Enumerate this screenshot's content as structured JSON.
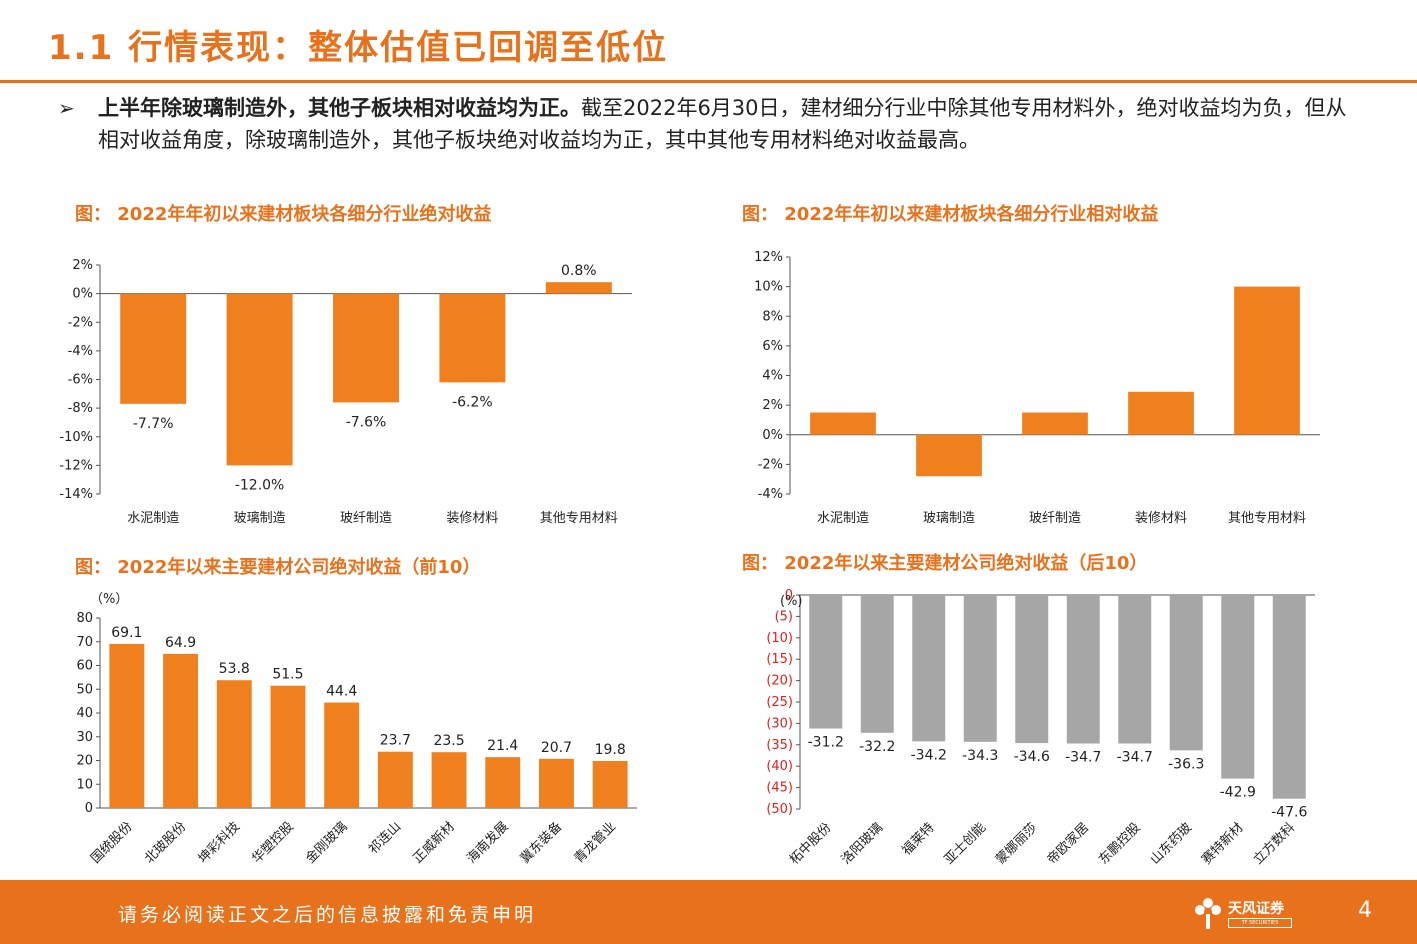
{
  "header": {
    "title": "1.1 行情表现：整体估值已回调至低位"
  },
  "bullet": {
    "marker": "➢",
    "bold": "上半年除玻璃制造外，其他子板块相对收益均为正。",
    "text": "截至2022年6月30日，建材细分行业中除其他专用材料外，绝对收益均为负，但从相对收益角度，除玻璃制造外，其他子板块绝对收益均为正，其中其他专用材料绝对收益最高。"
  },
  "figures": {
    "fig1_title": "图：  2022年年初以来建材板块各细分行业绝对收益",
    "fig2_title": "图：  2022年年初以来建材板块各细分行业相对收益",
    "fig3_title": "图：  2022年以来主要建材公司绝对收益（前10）",
    "fig4_title": "图：  2022年以来主要建材公司绝对收益（后10）"
  },
  "chart_data": [
    {
      "id": "abs",
      "type": "bar",
      "color": "#f0801e",
      "categories": [
        "水泥制造",
        "玻璃制造",
        "玻纤制造",
        "装修材料",
        "其他专用材料"
      ],
      "values": [
        -7.7,
        -12.0,
        -7.6,
        -6.2,
        0.8
      ],
      "labels": [
        "-7.7%",
        "-12.0%",
        "-7.6%",
        "-6.2%",
        "0.8%"
      ],
      "ylim": [
        -14,
        2
      ],
      "ticks": [
        2,
        0,
        -2,
        -4,
        -6,
        -8,
        -10,
        -12,
        -14
      ],
      "tick_labels": [
        "2%",
        "0%",
        "-2%",
        "-4%",
        "-6%",
        "-8%",
        "-10%",
        "-12%",
        "-14%"
      ]
    },
    {
      "id": "rel",
      "type": "bar",
      "color": "#f0801e",
      "categories": [
        "水泥制造",
        "玻璃制造",
        "玻纤制造",
        "装修材料",
        "其他专用材料"
      ],
      "values": [
        1.5,
        -2.8,
        1.5,
        2.9,
        10.0
      ],
      "ylim": [
        -4,
        12
      ],
      "ticks": [
        12,
        10,
        8,
        6,
        4,
        2,
        0,
        -2,
        -4
      ],
      "tick_labels": [
        "12%",
        "10%",
        "8%",
        "6%",
        "4%",
        "2%",
        "0%",
        "-2%",
        "-4%"
      ]
    },
    {
      "id": "top10",
      "type": "bar",
      "color": "#f0801e",
      "unit_label": "（%）",
      "categories": [
        "国统股份",
        "北玻股份",
        "坤彩科技",
        "华塑控股",
        "金刚玻璃",
        "祁连山",
        "正威新材",
        "海南发展",
        "冀东装备",
        "青龙管业"
      ],
      "values": [
        69.1,
        64.9,
        53.8,
        51.5,
        44.4,
        23.7,
        23.5,
        21.4,
        20.7,
        19.8
      ],
      "labels": [
        "69.1",
        "64.9",
        "53.8",
        "51.5",
        "44.4",
        "23.7",
        "23.5",
        "21.4",
        "20.7",
        "19.8"
      ],
      "ylim": [
        0,
        80
      ],
      "ticks": [
        80,
        70,
        60,
        50,
        40,
        30,
        20,
        10,
        0
      ],
      "tick_labels": [
        "80",
        "70",
        "60",
        "50",
        "40",
        "30",
        "20",
        "10",
        "0"
      ]
    },
    {
      "id": "bottom10",
      "type": "bar",
      "color": "#a6a6a6",
      "unit_label": "(%)",
      "categories": [
        "柘中股份",
        "洛阳玻璃",
        "福莱特",
        "亚士创能",
        "蒙娜丽莎",
        "帝欧家居",
        "东鹏控股",
        "山东药玻",
        "赛特新材",
        "立方数科"
      ],
      "values": [
        -31.2,
        -32.2,
        -34.2,
        -34.3,
        -34.6,
        -34.7,
        -34.7,
        -36.3,
        -42.9,
        -47.6
      ],
      "labels": [
        "-31.2",
        "-32.2",
        "-34.2",
        "-34.3",
        "-34.6",
        "-34.7",
        "-34.7",
        "-36.3",
        "-42.9",
        "-47.6"
      ],
      "ylim": [
        -50,
        0
      ],
      "ticks": [
        0,
        -5,
        -10,
        -15,
        -20,
        -25,
        -30,
        -35,
        -40,
        -45,
        -50
      ],
      "tick_labels": [
        "0",
        "(5)",
        "(10)",
        "(15)",
        "(20)",
        "(25)",
        "(30)",
        "(35)",
        "(40)",
        "(45)",
        "(50)"
      ],
      "tick_color": "#e02020"
    }
  ],
  "footer": {
    "disclaimer": "请务必阅读正文之后的信息披露和免责申明",
    "brand": "天风证券",
    "brand_sub": "TF SECURITIES",
    "page": "4"
  }
}
